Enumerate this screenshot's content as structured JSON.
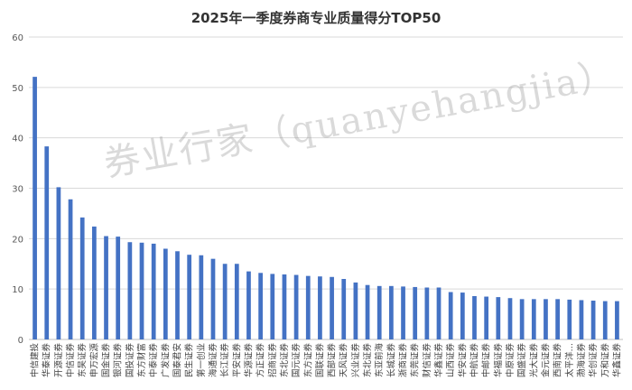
{
  "chart_data": {
    "type": "bar",
    "title": "2025年一季度券商专业质量得分TOP50",
    "xlabel": "",
    "ylabel": "",
    "ylim": [
      0,
      60
    ],
    "yticks": [
      0,
      10,
      20,
      30,
      40,
      50,
      60
    ],
    "grid": true,
    "legend": "none",
    "bar_color": "#4472C4",
    "categories": [
      "中信建投",
      "华泰证券",
      "开源证券",
      "中信证券",
      "东吴证券",
      "申万宏源",
      "国金证券",
      "银河证券",
      "国投证券",
      "东方财富",
      "中泰证券",
      "广发证券",
      "国泰君安",
      "民生证券",
      "第一创业",
      "海通证券",
      "长江证券",
      "平安证券",
      "华源证券",
      "方正证券",
      "招商证券",
      "东北证券",
      "国元证券",
      "东方证券",
      "国联证券",
      "西部证券",
      "天风证券",
      "兴业证券",
      "东北证券",
      "东亚前海",
      "长城证券",
      "浙商证券",
      "东莞证券",
      "财信证券",
      "华鑫证券",
      "山西证券",
      "华安证券",
      "中航证券",
      "中邮证券",
      "华福证券",
      "中原证券",
      "国盛证券",
      "光大证券",
      "金元证券",
      "西南证券",
      "太平洋…",
      "渤海证券",
      "华创证券",
      "万和证券",
      "华鑫证券"
    ],
    "values": [
      52.1,
      38.3,
      30.2,
      27.8,
      24.2,
      22.4,
      20.5,
      20.4,
      19.3,
      19.2,
      19.0,
      18.0,
      17.5,
      16.8,
      16.7,
      16.0,
      15.0,
      15.0,
      13.5,
      13.2,
      13.0,
      12.9,
      12.8,
      12.6,
      12.5,
      12.4,
      12.0,
      11.3,
      10.8,
      10.6,
      10.6,
      10.5,
      10.4,
      10.3,
      10.3,
      9.4,
      9.3,
      8.6,
      8.5,
      8.4,
      8.2,
      8.0,
      8.0,
      8.0,
      8.0,
      7.9,
      7.8,
      7.7,
      7.6,
      7.6
    ]
  },
  "watermark": {
    "text": "券业行家（quanyehangjia）"
  }
}
